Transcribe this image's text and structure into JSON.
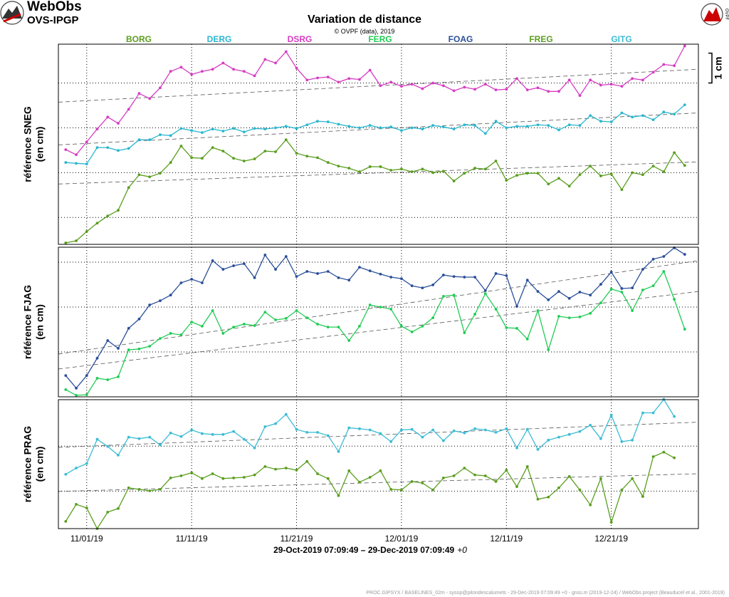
{
  "header": {
    "logo_title": "WebObs",
    "logo_subtitle": "OVS-IPGP",
    "logo_right": "OVPF"
  },
  "footer": "PROC.GIPSYX / BASELINES_02m - sysop@pitondescalumets - 29-Dec-2019 07:09:49 +0 - gnss.m (2019-12-24) / WebObs project (Beauducel et al., 2001-2019)",
  "chart_data": [
    {
      "type": "line",
      "title": "Variation de distance",
      "subtitle": "© OVPF (data), 2019",
      "ylabel": [
        "référence SNEG",
        "(en cm)"
      ],
      "ylim": [
        0,
        6.7
      ],
      "yticks": [
        0.9,
        2.4,
        3.9,
        5.4
      ],
      "grid": true,
      "scale": {
        "label": "1 cm",
        "value": 1
      },
      "series": [
        {
          "name": "DSRG",
          "color": "#d63cc3",
          "trend": [
            4.76,
            5.86
          ],
          "values": [
            3.17,
            3.0,
            3.43,
            3.86,
            4.26,
            4.05,
            4.52,
            5.05,
            4.88,
            5.24,
            5.79,
            5.93,
            5.69,
            5.79,
            5.86,
            6.07,
            5.86,
            5.79,
            5.64,
            6.19,
            6.07,
            6.45,
            5.9,
            5.5,
            5.57,
            5.6,
            5.43,
            5.55,
            5.52,
            5.83,
            5.31,
            5.43,
            5.29,
            5.36,
            5.21,
            5.4,
            5.31,
            5.14,
            5.26,
            5.19,
            5.36,
            5.17,
            5.19,
            5.55,
            5.17,
            5.24,
            5.12,
            5.12,
            5.5,
            4.98,
            5.5,
            5.33,
            5.36,
            5.29,
            5.55,
            5.5,
            5.76,
            6.02,
            5.98,
            6.64
          ]
        },
        {
          "name": "DERG",
          "color": "#2ab7cf",
          "trend": [
            3.33,
            4.4
          ],
          "values": [
            2.74,
            2.71,
            2.69,
            3.24,
            3.24,
            3.14,
            3.21,
            3.5,
            3.5,
            3.67,
            3.64,
            3.88,
            3.81,
            3.74,
            3.86,
            3.79,
            3.88,
            3.76,
            3.88,
            3.86,
            3.9,
            3.95,
            3.88,
            4.0,
            4.12,
            4.1,
            4.02,
            3.95,
            3.9,
            3.98,
            3.9,
            3.93,
            3.81,
            3.9,
            3.86,
            3.98,
            3.93,
            3.86,
            4.0,
            3.98,
            3.71,
            4.12,
            3.9,
            3.95,
            3.95,
            4.0,
            3.98,
            3.83,
            4.0,
            3.98,
            4.31,
            4.12,
            4.1,
            4.4,
            4.26,
            4.31,
            4.17,
            4.43,
            4.36,
            4.67
          ]
        },
        {
          "name": "BORG",
          "color": "#5a9e1e",
          "trend": [
            2.02,
            2.76
          ],
          "values": [
            0.05,
            0.12,
            0.43,
            0.71,
            0.95,
            1.14,
            1.9,
            2.33,
            2.26,
            2.38,
            2.74,
            3.29,
            2.9,
            2.88,
            3.24,
            3.12,
            2.88,
            2.79,
            2.86,
            3.12,
            3.1,
            3.5,
            3.05,
            2.95,
            2.9,
            2.74,
            2.62,
            2.55,
            2.43,
            2.6,
            2.6,
            2.48,
            2.52,
            2.43,
            2.52,
            2.4,
            2.45,
            2.12,
            2.38,
            2.55,
            2.52,
            2.79,
            2.14,
            2.31,
            2.38,
            2.38,
            2.02,
            2.21,
            1.95,
            2.33,
            2.62,
            2.29,
            2.36,
            1.83,
            2.4,
            2.33,
            2.62,
            2.43,
            3.07,
            2.64
          ]
        }
      ]
    },
    {
      "type": "line",
      "ylabel": [
        "référence FJAG",
        "(en cm)"
      ],
      "ylim": [
        0,
        5
      ],
      "yticks": [
        1.5,
        3,
        4.5
      ],
      "grid": true,
      "series": [
        {
          "name": "FOAG",
          "color": "#2b4f9a",
          "trend": [
            1.43,
            4.55
          ],
          "values": [
            0.71,
            0.29,
            0.71,
            1.29,
            1.88,
            1.62,
            2.29,
            2.6,
            3.07,
            3.21,
            3.4,
            3.81,
            3.93,
            3.81,
            4.55,
            4.26,
            4.38,
            4.45,
            3.98,
            4.74,
            4.26,
            4.69,
            4.02,
            4.19,
            4.12,
            4.19,
            3.98,
            3.9,
            4.33,
            4.21,
            4.1,
            4.0,
            3.95,
            3.71,
            3.64,
            3.74,
            4.07,
            4.02,
            4.0,
            4.0,
            3.55,
            4.12,
            4.05,
            3.02,
            3.9,
            3.52,
            3.24,
            3.52,
            3.29,
            3.5,
            3.4,
            3.76,
            4.17,
            3.62,
            3.64,
            4.26,
            4.6,
            4.69,
            4.98,
            4.76
          ]
        },
        {
          "name": "FERG",
          "color": "#22cc55",
          "trend": [
            0.93,
            3.52
          ],
          "values": [
            0.24,
            0.05,
            0.07,
            0.62,
            0.57,
            0.67,
            1.57,
            1.6,
            1.69,
            1.95,
            2.12,
            2.07,
            2.5,
            2.36,
            2.88,
            2.12,
            2.33,
            2.43,
            2.38,
            2.83,
            2.57,
            2.62,
            2.88,
            2.64,
            2.43,
            2.33,
            2.33,
            1.88,
            2.36,
            3.07,
            3.0,
            2.93,
            2.36,
            2.17,
            2.36,
            2.64,
            3.36,
            3.4,
            2.14,
            2.76,
            3.45,
            2.93,
            2.31,
            2.29,
            1.93,
            2.88,
            1.57,
            2.69,
            2.64,
            2.67,
            2.79,
            3.14,
            3.6,
            3.5,
            2.88,
            3.57,
            3.71,
            4.19,
            3.26,
            2.26
          ]
        }
      ]
    },
    {
      "type": "line",
      "ylabel": [
        "référence PRAG",
        "(en cm)"
      ],
      "ylim": [
        0,
        4.3
      ],
      "yticks": [
        1.25,
        2.75
      ],
      "grid": true,
      "xlim": [
        0,
        61
      ],
      "xticks": [
        {
          "value": 2.7,
          "label": "11/01/19"
        },
        {
          "value": 12.7,
          "label": "11/11/19"
        },
        {
          "value": 22.7,
          "label": "11/21/19"
        },
        {
          "value": 32.7,
          "label": "12/01/19"
        },
        {
          "value": 42.7,
          "label": "12/11/19"
        },
        {
          "value": 52.7,
          "label": "12/21/19"
        }
      ],
      "xlabel": "29-Oct-2019 07:09:49 – 29-Dec-2019 07:09:49",
      "xlabel_tz": "+0",
      "x": [
        0.7,
        1.7,
        2.7,
        3.7,
        4.7,
        5.7,
        6.7,
        7.7,
        8.7,
        9.7,
        10.7,
        11.7,
        12.7,
        13.7,
        14.7,
        15.7,
        16.7,
        17.7,
        18.7,
        19.7,
        20.7,
        21.7,
        22.7,
        23.7,
        24.7,
        25.7,
        26.7,
        27.7,
        28.7,
        29.7,
        30.7,
        31.7,
        32.7,
        33.7,
        34.7,
        35.7,
        36.7,
        37.7,
        38.7,
        39.7,
        40.7,
        41.7,
        42.7,
        43.7,
        44.7,
        45.7,
        46.7,
        47.7,
        48.7,
        49.7,
        50.7,
        51.7,
        52.7,
        53.7,
        54.7,
        55.7,
        56.7,
        57.7,
        58.7,
        59.7
      ],
      "series": [
        {
          "name": "GITG",
          "color": "#3bbcd4",
          "trend": [
            2.71,
            3.55
          ],
          "values": [
            1.81,
            2.02,
            2.17,
            2.98,
            2.74,
            2.45,
            3.05,
            3.0,
            3.05,
            2.79,
            3.19,
            3.07,
            3.29,
            3.17,
            3.14,
            3.14,
            3.24,
            2.98,
            2.69,
            3.4,
            3.5,
            3.81,
            3.31,
            3.21,
            3.21,
            3.1,
            2.57,
            3.36,
            3.33,
            3.29,
            3.17,
            2.9,
            3.29,
            3.31,
            3.05,
            3.29,
            2.93,
            3.26,
            3.19,
            3.33,
            3.29,
            3.21,
            3.33,
            2.69,
            3.31,
            2.64,
            2.95,
            3.05,
            3.14,
            3.24,
            3.45,
            3.0,
            3.79,
            2.9,
            2.95,
            3.86,
            3.86,
            4.31,
            3.74,
            null
          ]
        },
        {
          "name": "FREG",
          "color": "#5a9e1e",
          "trend": [
            1.24,
            1.83
          ],
          "values": [
            0.24,
            0.81,
            0.69,
            0.0,
            0.55,
            0.67,
            1.36,
            1.31,
            1.26,
            1.31,
            1.69,
            1.76,
            1.86,
            1.67,
            1.83,
            1.67,
            1.69,
            1.71,
            1.79,
            2.07,
            1.98,
            2.02,
            1.95,
            2.24,
            1.83,
            1.67,
            1.1,
            1.93,
            1.55,
            1.71,
            1.93,
            1.31,
            1.29,
            1.57,
            1.52,
            1.29,
            1.69,
            1.76,
            2.02,
            1.79,
            1.76,
            1.57,
            1.95,
            1.4,
            2.07,
            0.98,
            1.05,
            1.36,
            1.74,
            1.29,
            0.79,
            1.67,
            0.21,
            1.29,
            1.67,
            1.07,
            2.4,
            2.55,
            2.36,
            null
          ]
        }
      ]
    }
  ]
}
